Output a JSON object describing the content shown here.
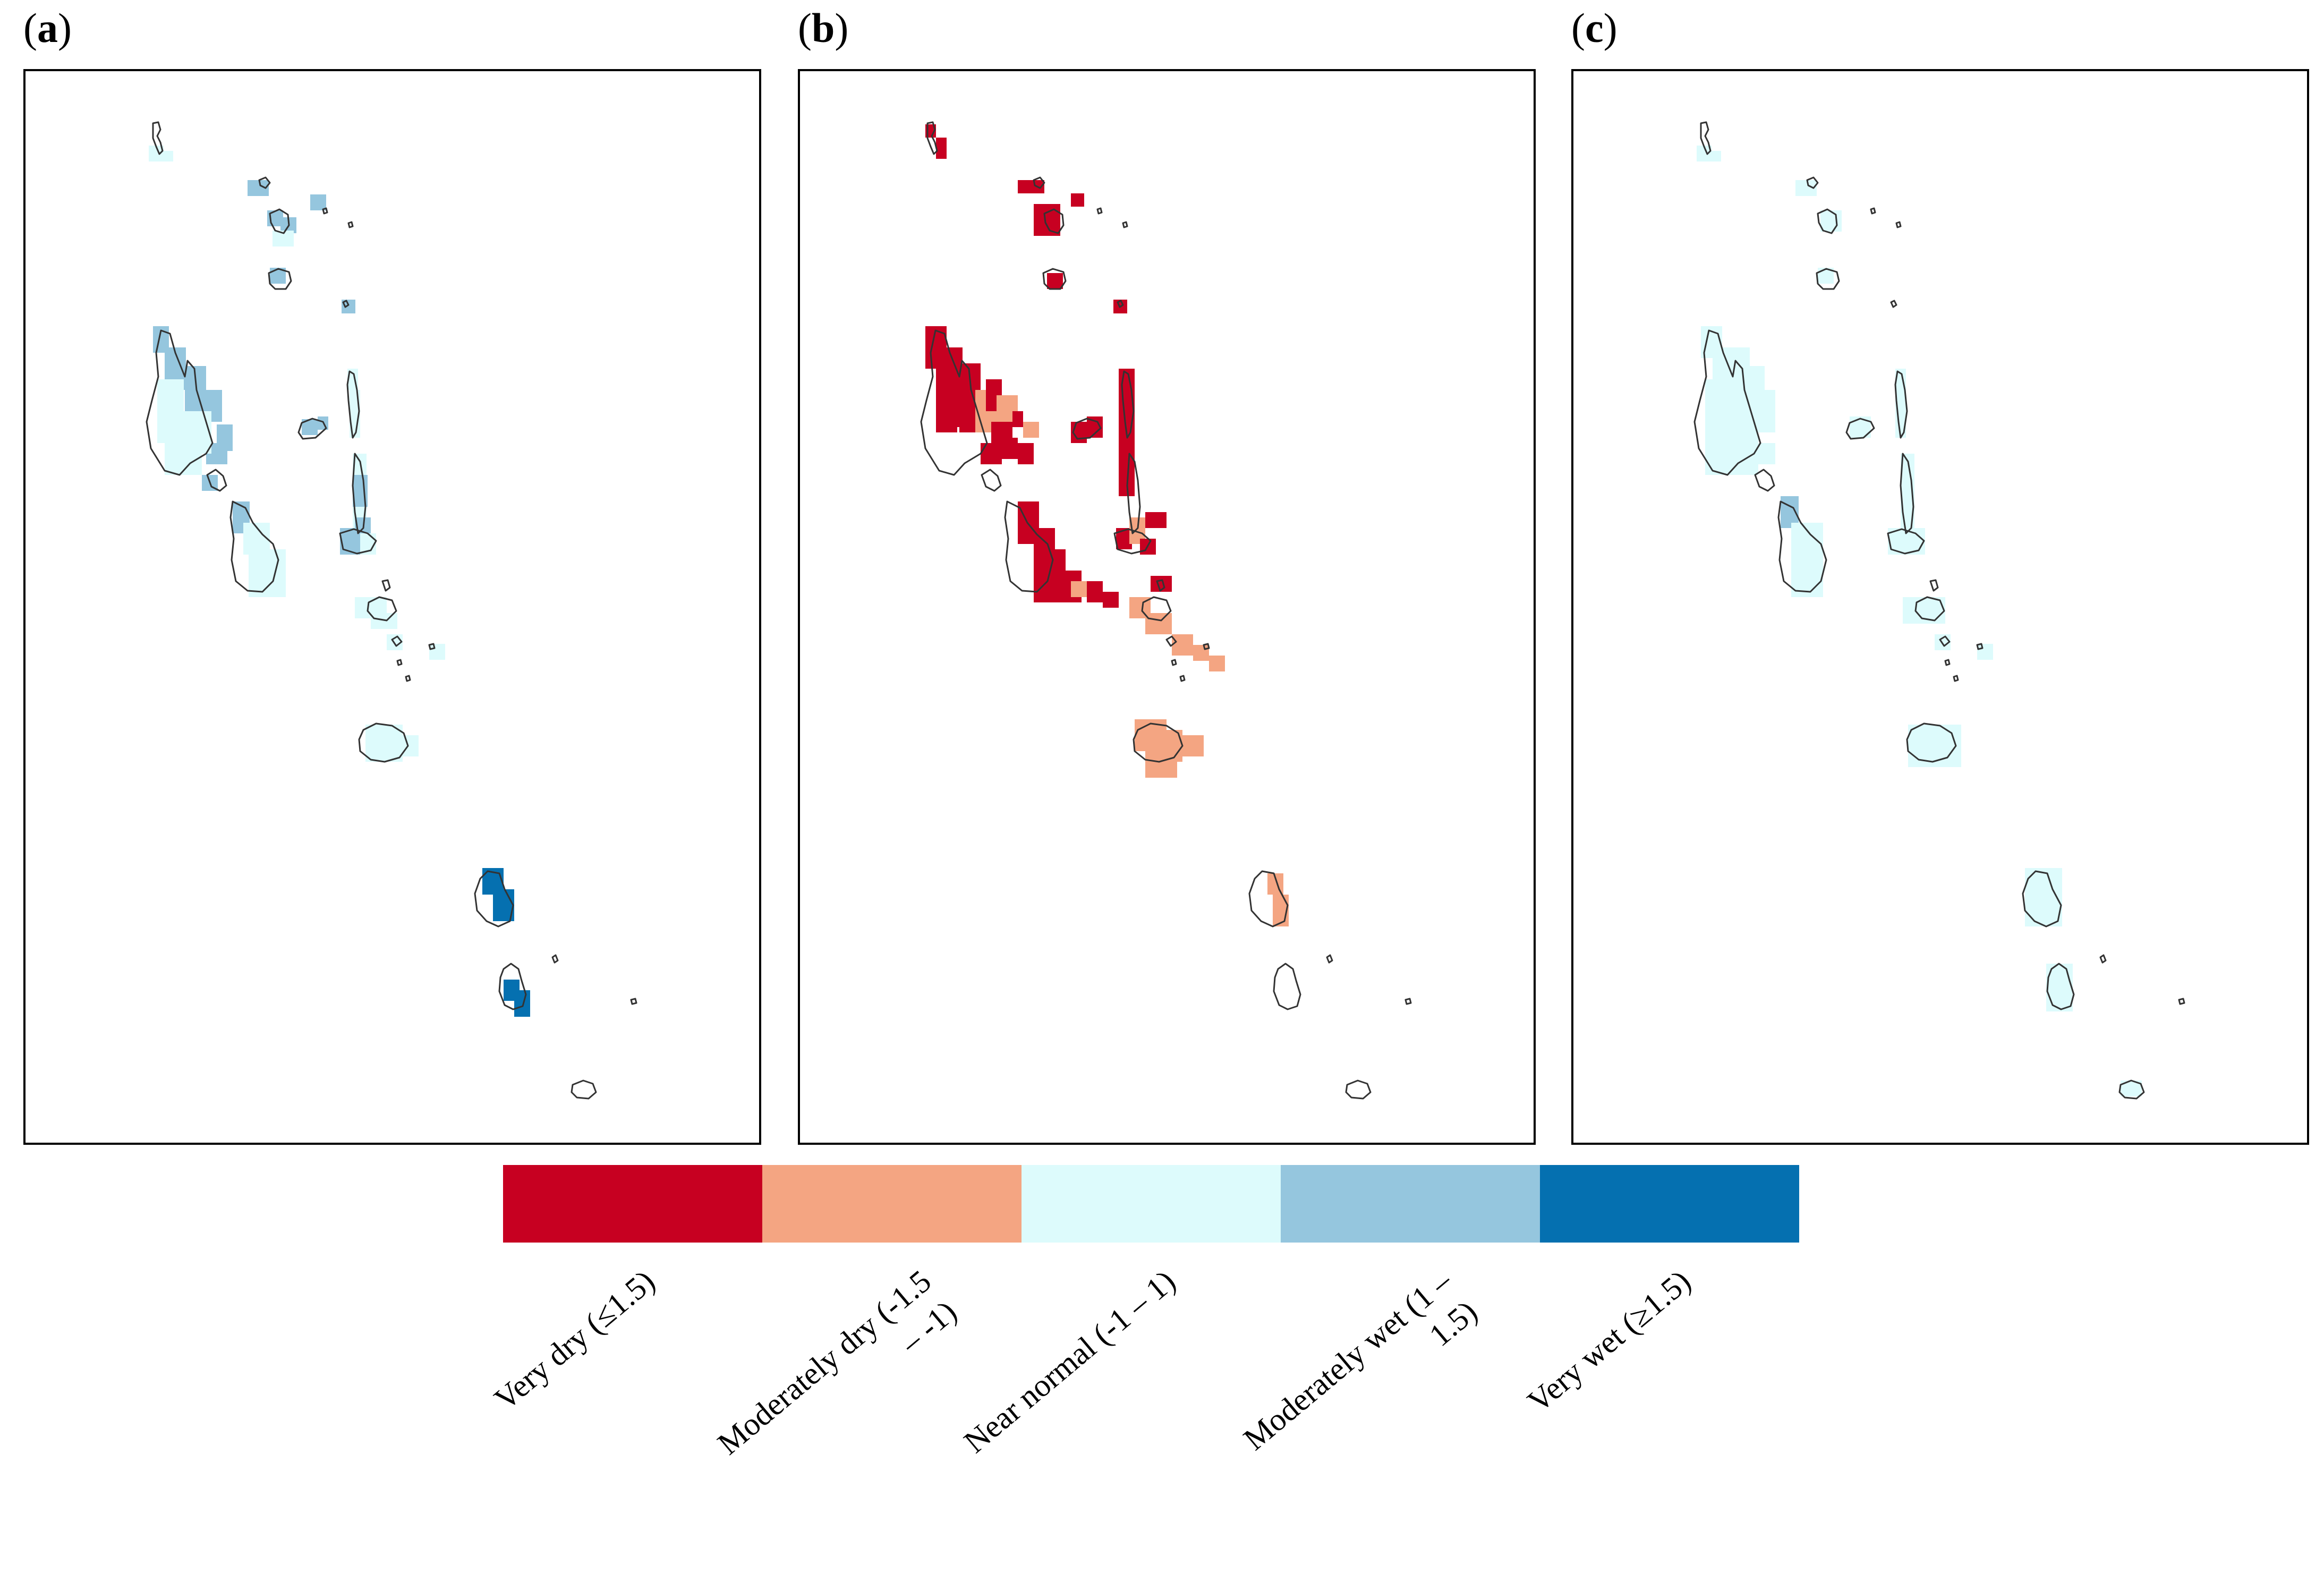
{
  "panels": [
    {
      "id": "a",
      "label": "a"
    },
    {
      "id": "b",
      "label": "b"
    },
    {
      "id": "c",
      "label": "c"
    }
  ],
  "legend": {
    "items": [
      {
        "label": "Very dry (≤1.5)",
        "color": "#c70021"
      },
      {
        "label": "Moderately dry (-1.5\n– -1)",
        "color": "#f4a582"
      },
      {
        "label": "Near normal (-1 – 1)",
        "color": "#ddfbfc"
      },
      {
        "label": "Moderately wet (1 –\n1.5)",
        "color": "#95c6de"
      },
      {
        "label": "Very wet (≥1.5)",
        "color": "#0570b0"
      }
    ]
  },
  "colors": {
    "very_dry": "#c70021",
    "moderately_dry": "#f4a582",
    "near_normal": "#ddfbfc",
    "moderately_wet": "#95c6de",
    "very_wet": "#0570b0",
    "coastline": "#333333"
  }
}
